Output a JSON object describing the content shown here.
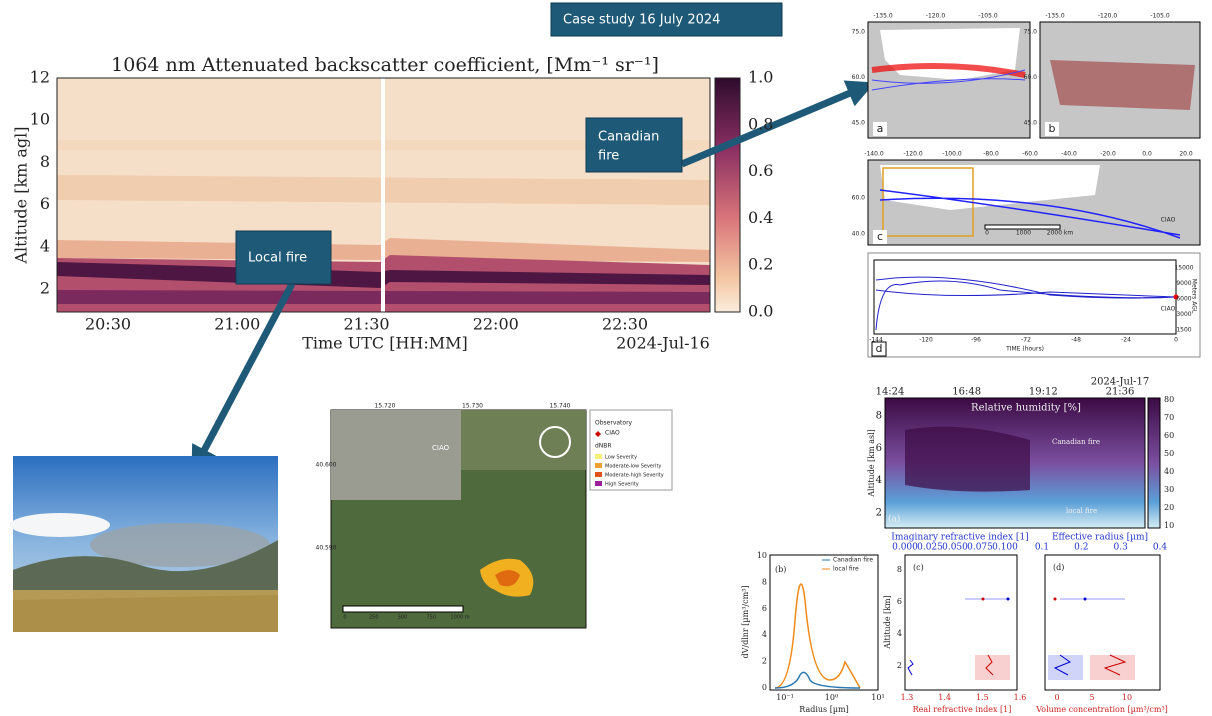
{
  "banner": "Case study 16 July 2024",
  "callouts": {
    "canadian_fire": [
      "Canadian",
      "fire"
    ],
    "local_fire": "Local fire"
  },
  "backscatter": {
    "title": "1064 nm Attenuated backscatter coefficient, [Mm⁻¹ sr⁻¹]",
    "y_label": "Altitude [km agl]",
    "yticks": [
      "12",
      "10",
      "8",
      "6",
      "4",
      "2"
    ],
    "x_label": "Time UTC [HH:MM]",
    "xticks": [
      "20:30",
      "21:00",
      "21:30",
      "22:00",
      "22:30"
    ],
    "date": "2024-Jul-16",
    "colorbar_ticks": [
      "1.0",
      "0.8",
      "0.6",
      "0.4",
      "0.2",
      "0.0"
    ]
  },
  "trajectories": {
    "panels": [
      "a",
      "b",
      "c",
      "d"
    ],
    "lon_ab": [
      "-135.0",
      "-120.0",
      "-105.0"
    ],
    "lat_ab": [
      "75.0",
      "60.0",
      "45.0"
    ],
    "lon_c": [
      "-140.0",
      "-120.0",
      "-100.0",
      "-80.0",
      "-60.0",
      "-40.0",
      "-20.0",
      "0.0",
      "20.0"
    ],
    "lat_c": [
      "60.0",
      "40.0"
    ],
    "scale": [
      "0",
      "1000",
      "2000 km"
    ],
    "site": "CIAO",
    "time_ticks": [
      "-144",
      "-120",
      "-96",
      "-72",
      "-48",
      "-24",
      "0"
    ],
    "time_label": "TIME (hours)",
    "height_label": "Meters AGL",
    "height_ticks": [
      "15000",
      "9000",
      "6000",
      "3000",
      "1500"
    ]
  },
  "fire_map": {
    "lon": [
      "15.720",
      "15.730",
      "15.740"
    ],
    "lat": [
      "40.600",
      "40.590"
    ],
    "site": "CIAO",
    "legend": {
      "title": "Observatory",
      "site": "CIAO",
      "dnbr": "dNBR",
      "classes": [
        "Low Severity",
        "Moderate-low Severity",
        "Moderate-high Severity",
        "High Severity"
      ]
    },
    "scale": [
      "0",
      "250",
      "500",
      "750",
      "1000 m"
    ]
  },
  "humidity": {
    "time_ticks": [
      "14:24",
      "16:48",
      "19:12",
      "21:36"
    ],
    "date": "2024-Jul-17",
    "title": "Relative humidity [%]",
    "y_label": "Altitude [km asl]",
    "yticks": [
      "8",
      "6",
      "4",
      "2"
    ],
    "colorbar_ticks": [
      "80",
      "70",
      "60",
      "50",
      "40",
      "30",
      "20",
      "10"
    ],
    "labels": {
      "canadian": "Canadian fire",
      "local": "local fire"
    },
    "panel": "(a)"
  },
  "size_distribution": {
    "panel": "(b)",
    "y_label": "dV/dlnr [µm³/cm³]",
    "x_label": "Radius [µm]",
    "yticks": [
      "10",
      "8",
      "6",
      "4",
      "2",
      "0"
    ],
    "xticks": [
      "10⁻¹",
      "10⁰",
      "10¹"
    ],
    "legend": [
      "Canadian fire",
      "local fire"
    ]
  },
  "refractive": {
    "panel": "(c)",
    "top_label": "Imaginary refractive index [1]",
    "top_ticks": [
      "0.000",
      "0.025",
      "0.050",
      "0.075",
      "0.100"
    ],
    "bottom_label": "Real refractive index [1]",
    "bottom_ticks": [
      "1.3",
      "1.4",
      "1.5",
      "1.6"
    ],
    "y_label": "Altitude [km]",
    "yticks": [
      "8",
      "6",
      "4",
      "2"
    ]
  },
  "volume": {
    "panel": "(d)",
    "top_label": "Effective radius [µm]",
    "top_ticks": [
      "0.1",
      "0.2",
      "0.3",
      "0.4"
    ],
    "bottom_label": "Volume concentration [µm³/cm³]",
    "bottom_ticks": [
      "0",
      "5",
      "10"
    ]
  }
}
